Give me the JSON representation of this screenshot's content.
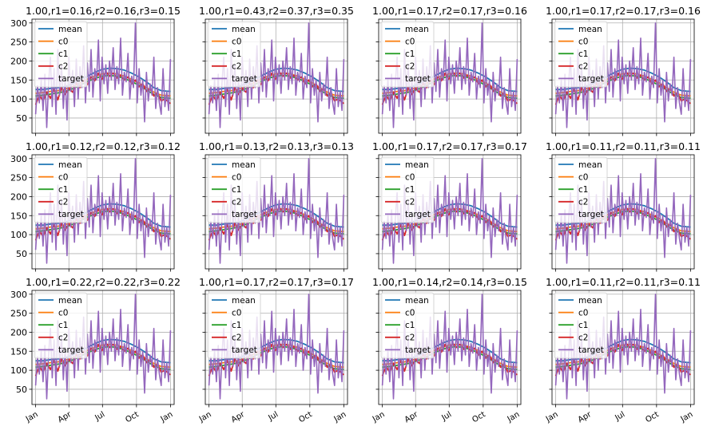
{
  "figure": {
    "grid": "3x4 subplots, shared x and y axes",
    "legend_labels": [
      "mean",
      "c0",
      "c1",
      "c2",
      "target"
    ],
    "legend_placement": "upper-left"
  },
  "colors": {
    "mean": "#1f77b4",
    "c0": "#ff7f0e",
    "c1": "#2ca02c",
    "c2": "#d62728",
    "target": "#9467bd",
    "grid": "#b0b0b0",
    "axes": "#000000"
  },
  "chart_data": {
    "type": "line",
    "shared_x": {
      "range": [
        "Jan",
        "Jan (next year)"
      ],
      "ticks": [
        "Jan",
        "Apr",
        "Jul",
        "Oct",
        "Jan"
      ],
      "tick_days": [
        0,
        90,
        181,
        273,
        365
      ]
    },
    "shared_y": {
      "ylim": [
        10,
        310
      ],
      "ticks": [
        50,
        100,
        150,
        200,
        250,
        300
      ]
    },
    "grid": true,
    "panels": [
      {
        "title": "1.00,r1=0.16,r2=0.16,r3=0.15"
      },
      {
        "title": "1.00,r1=0.43,r2=0.37,r3=0.35"
      },
      {
        "title": "1.00,r1=0.17,r2=0.17,r3=0.16"
      },
      {
        "title": "1.00,r1=0.17,r2=0.17,r3=0.16"
      },
      {
        "title": "1.00,r1=0.12,r2=0.12,r3=0.12"
      },
      {
        "title": "1.00,r1=0.13,r2=0.13,r3=0.13"
      },
      {
        "title": "1.00,r1=0.17,r2=0.17,r3=0.17"
      },
      {
        "title": "1.00,r1=0.11,r2=0.11,r3=0.11"
      },
      {
        "title": "1.00,r1=0.22,r2=0.22,r3=0.22"
      },
      {
        "title": "1.00,r1=0.17,r2=0.17,r3=0.17"
      },
      {
        "title": "1.00,r1=0.14,r2=0.14,r3=0.15"
      },
      {
        "title": "1.00,r1=0.11,r2=0.11,r3=0.11"
      }
    ],
    "series": [
      {
        "name": "mean",
        "x": [
          0,
          20,
          40,
          60,
          80,
          100,
          120,
          140,
          160,
          180,
          200,
          220,
          240,
          260,
          280,
          300,
          320,
          340,
          365
        ],
        "values": [
          125,
          125,
          128,
          130,
          133,
          140,
          150,
          160,
          170,
          178,
          181,
          180,
          176,
          168,
          158,
          145,
          130,
          122,
          120
        ]
      },
      {
        "name": "c0",
        "x": [
          0,
          20,
          40,
          60,
          80,
          100,
          120,
          140,
          160,
          180,
          200,
          220,
          240,
          260,
          280,
          300,
          320,
          340,
          365
        ],
        "values": [
          115,
          117,
          120,
          122,
          126,
          133,
          142,
          152,
          160,
          166,
          168,
          166,
          160,
          152,
          142,
          130,
          118,
          110,
          108
        ]
      },
      {
        "name": "c1",
        "x": [
          0,
          20,
          40,
          60,
          80,
          100,
          120,
          140,
          160,
          180,
          200,
          220,
          240,
          260,
          280,
          300,
          320,
          340,
          365
        ],
        "values": [
          108,
          110,
          113,
          116,
          120,
          127,
          136,
          146,
          154,
          160,
          162,
          160,
          154,
          146,
          136,
          124,
          112,
          104,
          102
        ]
      },
      {
        "name": "c2",
        "x": [
          0,
          10,
          20,
          30,
          40,
          50,
          60,
          70,
          80,
          90,
          100,
          110,
          120,
          130,
          140,
          150,
          160,
          170,
          180,
          190,
          200,
          210,
          220,
          230,
          240,
          250,
          260,
          270,
          280,
          290,
          300,
          310,
          320,
          330,
          340,
          350,
          365
        ],
        "values": [
          85,
          110,
          95,
          118,
          102,
          125,
          98,
          130,
          112,
          128,
          118,
          142,
          130,
          150,
          138,
          158,
          148,
          168,
          152,
          172,
          160,
          168,
          155,
          162,
          150,
          158,
          140,
          150,
          132,
          140,
          120,
          128,
          108,
          116,
          95,
          100,
          88
        ]
      },
      {
        "name": "target",
        "x": [
          0,
          5,
          10,
          15,
          20,
          25,
          30,
          35,
          40,
          45,
          50,
          55,
          60,
          65,
          70,
          75,
          80,
          85,
          90,
          95,
          100,
          105,
          110,
          115,
          120,
          125,
          130,
          135,
          140,
          145,
          150,
          155,
          160,
          165,
          170,
          175,
          180,
          185,
          190,
          195,
          200,
          205,
          210,
          215,
          220,
          225,
          230,
          235,
          240,
          245,
          250,
          255,
          260,
          265,
          270,
          275,
          280,
          285,
          290,
          295,
          300,
          305,
          310,
          315,
          320,
          325,
          330,
          335,
          340,
          345,
          350,
          355,
          360,
          365
        ],
        "values": [
          60,
          135,
          90,
          150,
          70,
          165,
          25,
          140,
          210,
          80,
          180,
          60,
          230,
          110,
          190,
          75,
          160,
          45,
          210,
          120,
          175,
          80,
          205,
          100,
          185,
          130,
          240,
          90,
          195,
          120,
          230,
          105,
          180,
          150,
          255,
          95,
          210,
          140,
          190,
          115,
          200,
          150,
          235,
          125,
          185,
          140,
          260,
          110,
          170,
          145,
          220,
          100,
          160,
          130,
          300,
          90,
          180,
          110,
          150,
          40,
          170,
          95,
          140,
          110,
          210,
          75,
          130,
          90,
          60,
          180,
          80,
          120,
          70,
          205
        ]
      }
    ]
  }
}
